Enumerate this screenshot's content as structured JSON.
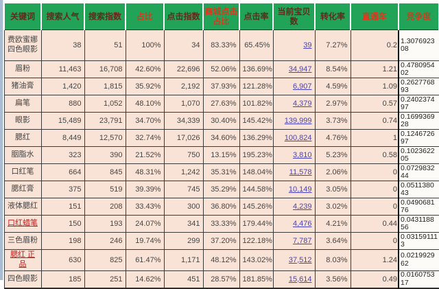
{
  "table": {
    "columns": [
      {
        "key": "keyword",
        "label": "关键词",
        "style": "dark"
      },
      {
        "key": "search_pop",
        "label": "搜索人气",
        "style": "dark"
      },
      {
        "key": "search_idx",
        "label": "搜索指数",
        "style": "dark"
      },
      {
        "key": "ratio",
        "label": "占比",
        "style": "red"
      },
      {
        "key": "click_idx",
        "label": "点击指数",
        "style": "dark"
      },
      {
        "key": "mall_ratio",
        "label": "商城点击占比",
        "style": "red"
      },
      {
        "key": "ctr",
        "label": "点击率",
        "style": "dark"
      },
      {
        "key": "items",
        "label": "当前宝贝数",
        "style": "dark"
      },
      {
        "key": "cvr",
        "label": "转化率",
        "style": "dark"
      },
      {
        "key": "ztc",
        "label": "直通车",
        "style": "red"
      },
      {
        "key": "competition",
        "label": "竞争度",
        "style": "red"
      }
    ],
    "rows": [
      {
        "keyword": "费欧蜜娜四色眼影",
        "keyword_link": false,
        "search_pop": "38",
        "search_idx": "51",
        "ratio": "100%",
        "click_idx": "34",
        "mall_ratio": "83.33%",
        "ctr": "65.45%",
        "items": "39",
        "cvr": "7.27%",
        "ztc": "0.2",
        "competition": "1.307692308"
      },
      {
        "keyword": "眉粉",
        "keyword_link": false,
        "search_pop": "11,463",
        "search_idx": "16,708",
        "ratio": "42.60%",
        "click_idx": "22,696",
        "mall_ratio": "52.06%",
        "ctr": "136.69%",
        "items": "34,947",
        "cvr": "8.54%",
        "ztc": "1.21",
        "competition": "0.478095402"
      },
      {
        "keyword": "猪油膏",
        "keyword_link": false,
        "search_pop": "1,420",
        "search_idx": "1,815",
        "ratio": "35.92%",
        "click_idx": "2,192",
        "mall_ratio": "37.93%",
        "ctr": "121.28%",
        "items": "6,907",
        "cvr": "4.59%",
        "ztc": "1.09",
        "competition": "0.262776893"
      },
      {
        "keyword": "扁笔",
        "keyword_link": false,
        "search_pop": "880",
        "search_idx": "1,052",
        "ratio": "48.10%",
        "click_idx": "1,070",
        "mall_ratio": "27.63%",
        "ctr": "101.82%",
        "items": "4,379",
        "cvr": "2.97%",
        "ztc": "0.57",
        "competition": "0.240237497"
      },
      {
        "keyword": "眼影",
        "keyword_link": false,
        "search_pop": "15,489",
        "search_idx": "23,791",
        "ratio": "34.70%",
        "click_idx": "34,339",
        "mall_ratio": "30.40%",
        "ctr": "145.42%",
        "items": "139,999",
        "cvr": "3.73%",
        "ztc": "0.74",
        "competition": "0.169936928"
      },
      {
        "keyword": "腮红",
        "keyword_link": false,
        "search_pop": "8,449",
        "search_idx": "12,570",
        "ratio": "32.74%",
        "click_idx": "17,026",
        "mall_ratio": "34.60%",
        "ctr": "136.29%",
        "items": "100,824",
        "cvr": "4.76%",
        "ztc": "1",
        "competition": "0.124672697"
      },
      {
        "keyword": "胭脂水",
        "keyword_link": false,
        "search_pop": "323",
        "search_idx": "390",
        "ratio": "21.52%",
        "click_idx": "750",
        "mall_ratio": "13.15%",
        "ctr": "195.23%",
        "items": "3,810",
        "cvr": "5.23%",
        "ztc": "0.58",
        "competition": "0.102362205"
      },
      {
        "keyword": "口红笔",
        "keyword_link": false,
        "search_pop": "664",
        "search_idx": "845",
        "ratio": "48.31%",
        "click_idx": "1,242",
        "mall_ratio": "35.31%",
        "ctr": "148.04%",
        "items": "11,578",
        "cvr": "2.06%",
        "ztc": "0",
        "competition": "0.072983244"
      },
      {
        "keyword": "腮红膏",
        "keyword_link": false,
        "search_pop": "375",
        "search_idx": "519",
        "ratio": "39.39%",
        "click_idx": "745",
        "mall_ratio": "35.29%",
        "ctr": "144.58%",
        "items": "10,149",
        "cvr": "3.05%",
        "ztc": "0",
        "competition": "0.051138043"
      },
      {
        "keyword": "液体腮红",
        "keyword_link": false,
        "search_pop": "151",
        "search_idx": "208",
        "ratio": "33.43%",
        "click_idx": "300",
        "mall_ratio": "36.80%",
        "ctr": "145.26%",
        "items": "4,239",
        "cvr": "3.02%",
        "ztc": "0",
        "competition": "0.049068176"
      },
      {
        "keyword": "口红蜡笔",
        "keyword_link": true,
        "search_pop": "150",
        "search_idx": "193",
        "ratio": "24.07%",
        "click_idx": "341",
        "mall_ratio": "33.33%",
        "ctr": "179.44%",
        "items": "4,476",
        "cvr": "4.21%",
        "ztc": "0.44",
        "competition": "0.043118856"
      },
      {
        "keyword": "三色眉粉",
        "keyword_link": false,
        "search_pop": "198",
        "search_idx": "246",
        "ratio": "19.74%",
        "click_idx": "299",
        "mall_ratio": "37.20%",
        "ctr": "122.18%",
        "items": "7,787",
        "cvr": "3.64%",
        "ztc": "0",
        "competition": "0.031591113"
      },
      {
        "keyword": "腮红 正品",
        "keyword_link": true,
        "search_pop": "630",
        "search_idx": "825",
        "ratio": "61.47%",
        "click_idx": "1,171",
        "mall_ratio": "48.12%",
        "ctr": "143.02%",
        "items": "37,512",
        "cvr": "8.03%",
        "ztc": "1.24",
        "competition": "0.021992962"
      },
      {
        "keyword": "四色眼影",
        "keyword_link": false,
        "search_pop": "185",
        "search_idx": "251",
        "ratio": "14.62%",
        "click_idx": "451",
        "mall_ratio": "28.57%",
        "ctr": "181.85%",
        "items": "15,614",
        "cvr": "3.56%",
        "ztc": "0.49",
        "competition": "0.016075317"
      }
    ]
  }
}
